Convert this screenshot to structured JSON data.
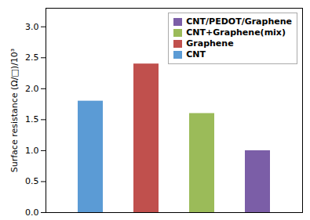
{
  "chart_data": {
    "type": "bar",
    "ylabel": "Surface resistance (Ω/□)/10³",
    "categories": [
      "CNT",
      "Graphene",
      "CNT+Graphene(mix)",
      "CNT/PEDOT/Graphene"
    ],
    "values": [
      1.8,
      2.4,
      1.6,
      1.0
    ],
    "colors": [
      "#5B9BD5",
      "#C0504D",
      "#9BBB59",
      "#7B5EA7"
    ],
    "ylim": [
      0,
      3.3
    ],
    "yticks": [
      {
        "value": 0,
        "label": "0.0"
      },
      0.5,
      {
        "value": 1.0,
        "label": "1.0"
      },
      1.5,
      {
        "value": 2.0,
        "label": "2.0"
      },
      2.5,
      {
        "value": 3.0,
        "label": "3.0"
      }
    ],
    "grid": false,
    "legend": "upper right",
    "tick_labels": "y"
  }
}
